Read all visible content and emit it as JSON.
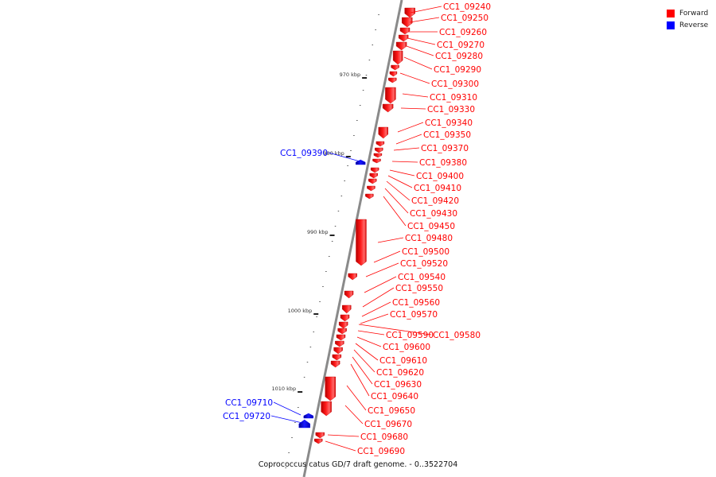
{
  "caption": "Coprococcus catus GD/7 draft genome. - 0..3522704",
  "legend": {
    "forward_label": "Forward",
    "reverse_label": "Reverse",
    "forward_color": "#ff0000",
    "reverse_color": "#0000ff"
  },
  "ruler": {
    "ticks": [
      {
        "kbp": 970,
        "label": "970 kbp"
      },
      {
        "kbp": 980,
        "label": "980 kbp"
      },
      {
        "kbp": 990,
        "label": "990 kbp"
      },
      {
        "kbp": 1000,
        "label": "1000 kbp"
      },
      {
        "kbp": 1010,
        "label": "1010 kbp"
      }
    ]
  },
  "genes": [
    {
      "label": "CC1_09240",
      "strand": "forward"
    },
    {
      "label": "CC1_09250",
      "strand": "forward"
    },
    {
      "label": "CC1_09260",
      "strand": "forward"
    },
    {
      "label": "CC1_09270",
      "strand": "forward"
    },
    {
      "label": "CC1_09280",
      "strand": "forward"
    },
    {
      "label": "CC1_09290",
      "strand": "forward"
    },
    {
      "label": "CC1_09300",
      "strand": "forward"
    },
    {
      "label": "CC1_09310",
      "strand": "forward"
    },
    {
      "label": "CC1_09330",
      "strand": "forward"
    },
    {
      "label": "CC1_09340",
      "strand": "forward"
    },
    {
      "label": "CC1_09350",
      "strand": "forward"
    },
    {
      "label": "CC1_09370",
      "strand": "forward"
    },
    {
      "label": "CC1_09380",
      "strand": "forward"
    },
    {
      "label": "CC1_09390",
      "strand": "reverse"
    },
    {
      "label": "CC1_09400",
      "strand": "forward"
    },
    {
      "label": "CC1_09410",
      "strand": "forward"
    },
    {
      "label": "CC1_09420",
      "strand": "forward"
    },
    {
      "label": "CC1_09430",
      "strand": "forward"
    },
    {
      "label": "CC1_09450",
      "strand": "forward"
    },
    {
      "label": "CC1_09480",
      "strand": "forward"
    },
    {
      "label": "CC1_09500",
      "strand": "forward"
    },
    {
      "label": "CC1_09520",
      "strand": "forward"
    },
    {
      "label": "CC1_09540",
      "strand": "forward"
    },
    {
      "label": "CC1_09550",
      "strand": "forward"
    },
    {
      "label": "CC1_09560",
      "strand": "forward"
    },
    {
      "label": "CC1_09570",
      "strand": "forward"
    },
    {
      "label": "CC1_09580",
      "strand": "forward"
    },
    {
      "label": "CC1_09590",
      "strand": "forward"
    },
    {
      "label": "CC1_09600",
      "strand": "forward"
    },
    {
      "label": "CC1_09610",
      "strand": "forward"
    },
    {
      "label": "CC1_09620",
      "strand": "forward"
    },
    {
      "label": "CC1_09630",
      "strand": "forward"
    },
    {
      "label": "CC1_09640",
      "strand": "forward"
    },
    {
      "label": "CC1_09650",
      "strand": "forward"
    },
    {
      "label": "CC1_09670",
      "strand": "forward"
    },
    {
      "label": "CC1_09680",
      "strand": "forward"
    },
    {
      "label": "CC1_09690",
      "strand": "forward"
    },
    {
      "label": "CC1_09710",
      "strand": "reverse"
    },
    {
      "label": "CC1_09720",
      "strand": "reverse"
    }
  ]
}
